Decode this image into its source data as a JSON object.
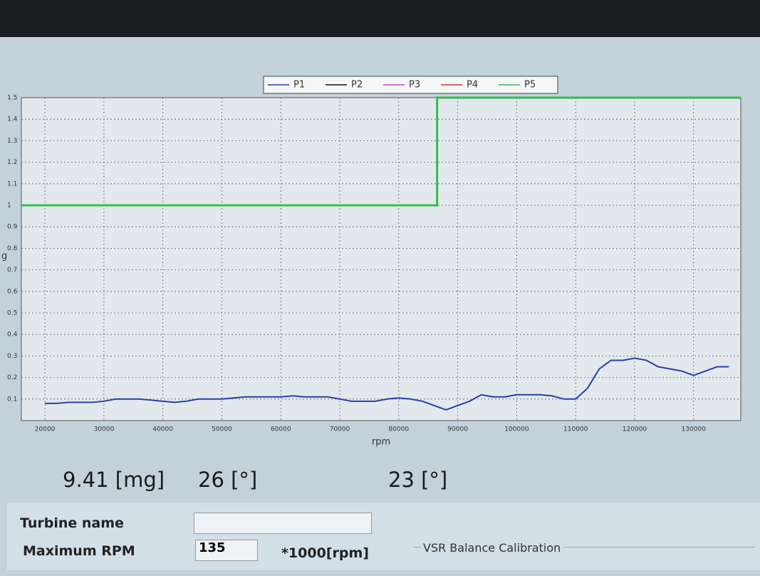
{
  "chart_data": {
    "type": "line",
    "x_label": "rpm",
    "y_label": "g",
    "xlim": [
      16000,
      138000
    ],
    "ylim": [
      0,
      1.5
    ],
    "xticks": [
      20000,
      30000,
      40000,
      50000,
      60000,
      70000,
      80000,
      90000,
      100000,
      110000,
      120000,
      130000
    ],
    "yticks": [
      0.1,
      0.2,
      0.3,
      0.4,
      0.5,
      0.6,
      0.7,
      0.8,
      0.9,
      1,
      1.1,
      1.2,
      1.3,
      1.4,
      1.5
    ],
    "grid": true,
    "legend": "top",
    "series": [
      {
        "name": "P1",
        "color": "#2a3fa8",
        "x": [
          20000,
          22000,
          24000,
          26000,
          28000,
          30000,
          32000,
          34000,
          36000,
          38000,
          40000,
          42000,
          44000,
          46000,
          48000,
          50000,
          52000,
          54000,
          56000,
          58000,
          60000,
          62000,
          64000,
          66000,
          68000,
          70000,
          72000,
          74000,
          76000,
          78000,
          80000,
          82000,
          84000,
          86000,
          88000,
          90000,
          92000,
          94000,
          96000,
          98000,
          100000,
          102000,
          104000,
          106000,
          108000,
          110000,
          112000,
          114000,
          116000,
          118000,
          120000,
          122000,
          124000,
          126000,
          128000,
          130000,
          132000,
          134000,
          136000
        ],
        "values": [
          0.08,
          0.08,
          0.085,
          0.085,
          0.085,
          0.09,
          0.1,
          0.1,
          0.1,
          0.095,
          0.09,
          0.085,
          0.09,
          0.1,
          0.1,
          0.1,
          0.105,
          0.11,
          0.11,
          0.11,
          0.11,
          0.115,
          0.11,
          0.11,
          0.11,
          0.1,
          0.09,
          0.09,
          0.09,
          0.1,
          0.105,
          0.1,
          0.09,
          0.07,
          0.05,
          0.07,
          0.09,
          0.12,
          0.11,
          0.11,
          0.12,
          0.12,
          0.12,
          0.115,
          0.1,
          0.1,
          0.15,
          0.24,
          0.28,
          0.28,
          0.29,
          0.28,
          0.25,
          0.24,
          0.23,
          0.21,
          0.23,
          0.25,
          0.25
        ]
      },
      {
        "name": "P2",
        "color": "#111111",
        "x": [],
        "values": []
      },
      {
        "name": "P3",
        "color": "#d040d0",
        "x": [],
        "values": []
      },
      {
        "name": "P4",
        "color": "#d03030",
        "x": [],
        "values": []
      },
      {
        "name": "P5",
        "color": "#2fbf4a",
        "x": [
          16000,
          86500,
          86500,
          138000
        ],
        "values": [
          1,
          1,
          1.5,
          1.5
        ]
      }
    ]
  },
  "readouts": [
    "9.41 [mg]",
    "26 [°]",
    "23 [°]"
  ],
  "form": {
    "turbine_name_label": "Turbine name",
    "turbine_name_value": "",
    "max_rpm_label": "Maximum RPM",
    "max_rpm_value": "135",
    "max_rpm_unit": "*1000[rpm]",
    "group_title": "VSR Balance Calibration"
  }
}
